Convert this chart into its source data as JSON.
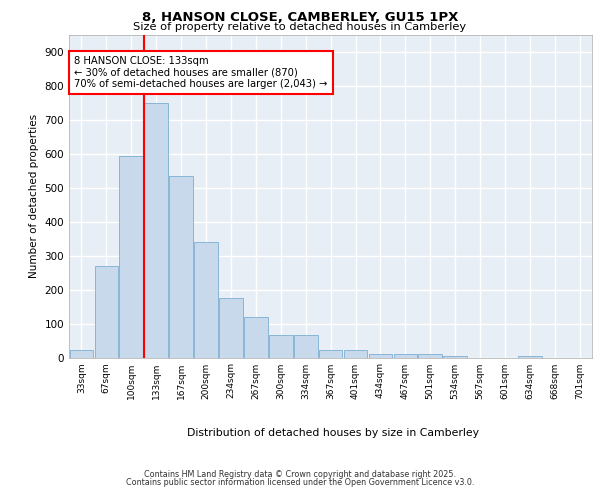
{
  "title_line1": "8, HANSON CLOSE, CAMBERLEY, GU15 1PX",
  "title_line2": "Size of property relative to detached houses in Camberley",
  "xlabel": "Distribution of detached houses by size in Camberley",
  "ylabel": "Number of detached properties",
  "categories": [
    "33sqm",
    "67sqm",
    "100sqm",
    "133sqm",
    "167sqm",
    "200sqm",
    "234sqm",
    "267sqm",
    "300sqm",
    "334sqm",
    "367sqm",
    "401sqm",
    "434sqm",
    "467sqm",
    "501sqm",
    "534sqm",
    "567sqm",
    "601sqm",
    "634sqm",
    "668sqm",
    "701sqm"
  ],
  "values": [
    22,
    270,
    595,
    750,
    535,
    340,
    175,
    120,
    65,
    65,
    22,
    22,
    10,
    10,
    10,
    5,
    0,
    0,
    5,
    0,
    0
  ],
  "bar_color": "#c9d9ec",
  "bar_edge_color": "#7bafd4",
  "vline_color": "red",
  "annotation_text": "8 HANSON CLOSE: 133sqm\n← 30% of detached houses are smaller (870)\n70% of semi-detached houses are larger (2,043) →",
  "annotation_box_color": "white",
  "annotation_box_edge": "red",
  "ylim": [
    0,
    950
  ],
  "yticks": [
    0,
    100,
    200,
    300,
    400,
    500,
    600,
    700,
    800,
    900
  ],
  "background_color": "#e8eef5",
  "grid_color": "white",
  "footer_line1": "Contains HM Land Registry data © Crown copyright and database right 2025.",
  "footer_line2": "Contains public sector information licensed under the Open Government Licence v3.0."
}
